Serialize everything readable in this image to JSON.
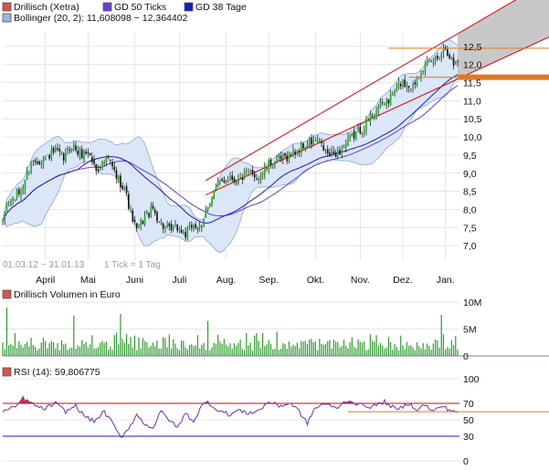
{
  "legend": {
    "price": "Drillisch (Xetra)",
    "ma50": "GD 50 Ticks",
    "ma38": "GD 38 Tage",
    "bollinger": "Bollinger (20, 2): 11,608098 − 12,364402",
    "volume": "Drillisch Volumen in Euro",
    "rsi": "RSI (14): 59,806775"
  },
  "footer": {
    "range": "01.03.12 − 31.01.13",
    "tick": "1 Tick = 1 Tag"
  },
  "colors": {
    "candle_up": "#22aa22",
    "candle_down": "#111111",
    "ma50": "#6a3fd0",
    "ma38": "#1c1cb8",
    "bollinger_line": "#8aa8d8",
    "bollinger_fill": "#dbe6f6",
    "trend_channel": "#dd0000",
    "channel_fill": "#c8c8c8",
    "volume_bar": "#2e9b2e",
    "rsi_line": "#6633aa",
    "rsi_fill": "#e03030",
    "ref_line": "#e07820",
    "grid": "#dcdcdc",
    "legend_price": "#d9534f",
    "legend_ma50": "#6a3fd0",
    "legend_ma38": "#1c1cb8",
    "legend_boll": "#9bb4de"
  },
  "chart_data": [
    {
      "name": "price-panel",
      "type": "candlestick",
      "title": "Drillisch (Xetra)",
      "x_tick_labels": [
        "April",
        "Mai",
        "Juni",
        "Juli",
        "Aug.",
        "Sep.",
        "Okt.",
        "Nov.",
        "Dez.",
        "Jan."
      ],
      "y_tick_labels": [
        "7,0",
        "7,5",
        "8,0",
        "8,5",
        "9,0",
        "9,5",
        "10,0",
        "10,5",
        "11,0",
        "11,5",
        "12,0",
        "12,5"
      ],
      "ylim": [
        6.6,
        12.9
      ],
      "close_waypoints": [
        {
          "t": 0,
          "v": 7.6
        },
        {
          "t": 2,
          "v": 8.1
        },
        {
          "t": 5,
          "v": 8.3
        },
        {
          "t": 9,
          "v": 8.5
        },
        {
          "t": 14,
          "v": 9.3
        },
        {
          "t": 20,
          "v": 9.4
        },
        {
          "t": 26,
          "v": 9.6
        },
        {
          "t": 30,
          "v": 9.4
        },
        {
          "t": 34,
          "v": 9.8
        },
        {
          "t": 38,
          "v": 9.5
        },
        {
          "t": 42,
          "v": 9.6
        },
        {
          "t": 46,
          "v": 9.1
        },
        {
          "t": 52,
          "v": 9.4
        },
        {
          "t": 56,
          "v": 8.9
        },
        {
          "t": 60,
          "v": 8.6
        },
        {
          "t": 63,
          "v": 7.9
        },
        {
          "t": 66,
          "v": 7.4
        },
        {
          "t": 70,
          "v": 7.8
        },
        {
          "t": 74,
          "v": 8.0
        },
        {
          "t": 78,
          "v": 7.6
        },
        {
          "t": 82,
          "v": 7.4
        },
        {
          "t": 86,
          "v": 7.5
        },
        {
          "t": 90,
          "v": 7.3
        },
        {
          "t": 94,
          "v": 7.6
        },
        {
          "t": 98,
          "v": 7.4
        },
        {
          "t": 100,
          "v": 8.0
        },
        {
          "t": 104,
          "v": 8.5
        },
        {
          "t": 108,
          "v": 8.8
        },
        {
          "t": 112,
          "v": 8.9
        },
        {
          "t": 116,
          "v": 8.8
        },
        {
          "t": 120,
          "v": 9.0
        },
        {
          "t": 126,
          "v": 8.9
        },
        {
          "t": 132,
          "v": 9.3
        },
        {
          "t": 138,
          "v": 9.4
        },
        {
          "t": 144,
          "v": 9.6
        },
        {
          "t": 150,
          "v": 9.8
        },
        {
          "t": 155,
          "v": 9.9
        },
        {
          "t": 160,
          "v": 9.5
        },
        {
          "t": 166,
          "v": 9.6
        },
        {
          "t": 172,
          "v": 10.0
        },
        {
          "t": 178,
          "v": 10.3
        },
        {
          "t": 184,
          "v": 10.8
        },
        {
          "t": 190,
          "v": 11.0
        },
        {
          "t": 196,
          "v": 11.5
        },
        {
          "t": 202,
          "v": 11.4
        },
        {
          "t": 206,
          "v": 11.9
        },
        {
          "t": 210,
          "v": 12.0
        },
        {
          "t": 214,
          "v": 12.2
        },
        {
          "t": 218,
          "v": 12.5
        },
        {
          "t": 222,
          "v": 12.0
        },
        {
          "t": 224,
          "v": 12.1
        }
      ],
      "reference_levels": [
        12.45,
        11.65
      ]
    },
    {
      "name": "volume-panel",
      "type": "bar",
      "title": "Drillisch Volumen in Euro",
      "y_tick_labels": [
        "0",
        "5M",
        "10M"
      ],
      "ylim": [
        0,
        10
      ],
      "typical_range": [
        1,
        4.5
      ],
      "peaks": [
        {
          "t": 2,
          "v": 9.0
        },
        {
          "t": 35,
          "v": 7.5
        },
        {
          "t": 58,
          "v": 7.8
        },
        {
          "t": 101,
          "v": 6.5
        },
        {
          "t": 135,
          "v": 4.5
        },
        {
          "t": 216,
          "v": 7.6
        }
      ]
    },
    {
      "name": "rsi-panel",
      "type": "line",
      "title": "RSI (14): 59,806775",
      "y_tick_labels": [
        "0",
        "30",
        "50",
        "70",
        "100"
      ],
      "ylim": [
        0,
        100
      ],
      "levels": [
        30,
        70
      ],
      "last_value": 59.806775,
      "waypoints": [
        {
          "t": 0,
          "v": 60
        },
        {
          "t": 6,
          "v": 65
        },
        {
          "t": 10,
          "v": 76
        },
        {
          "t": 14,
          "v": 70
        },
        {
          "t": 20,
          "v": 63
        },
        {
          "t": 26,
          "v": 70
        },
        {
          "t": 31,
          "v": 60
        },
        {
          "t": 36,
          "v": 67
        },
        {
          "t": 40,
          "v": 55
        },
        {
          "t": 45,
          "v": 48
        },
        {
          "t": 50,
          "v": 60
        },
        {
          "t": 55,
          "v": 42
        },
        {
          "t": 58,
          "v": 28
        },
        {
          "t": 62,
          "v": 40
        },
        {
          "t": 66,
          "v": 56
        },
        {
          "t": 70,
          "v": 45
        },
        {
          "t": 74,
          "v": 40
        },
        {
          "t": 78,
          "v": 60
        },
        {
          "t": 82,
          "v": 50
        },
        {
          "t": 86,
          "v": 40
        },
        {
          "t": 90,
          "v": 58
        },
        {
          "t": 94,
          "v": 48
        },
        {
          "t": 98,
          "v": 67
        },
        {
          "t": 101,
          "v": 72
        },
        {
          "t": 104,
          "v": 65
        },
        {
          "t": 108,
          "v": 60
        },
        {
          "t": 112,
          "v": 56
        },
        {
          "t": 116,
          "v": 62
        },
        {
          "t": 120,
          "v": 58
        },
        {
          "t": 126,
          "v": 61
        },
        {
          "t": 131,
          "v": 72
        },
        {
          "t": 136,
          "v": 67
        },
        {
          "t": 142,
          "v": 70
        },
        {
          "t": 146,
          "v": 60
        },
        {
          "t": 150,
          "v": 45
        },
        {
          "t": 153,
          "v": 62
        },
        {
          "t": 158,
          "v": 70
        },
        {
          "t": 164,
          "v": 64
        },
        {
          "t": 170,
          "v": 74
        },
        {
          "t": 176,
          "v": 68
        },
        {
          "t": 182,
          "v": 66
        },
        {
          "t": 188,
          "v": 72
        },
        {
          "t": 194,
          "v": 62
        },
        {
          "t": 200,
          "v": 70
        },
        {
          "t": 204,
          "v": 63
        },
        {
          "t": 208,
          "v": 68
        },
        {
          "t": 212,
          "v": 60
        },
        {
          "t": 216,
          "v": 67
        },
        {
          "t": 220,
          "v": 62
        },
        {
          "t": 224,
          "v": 60
        }
      ]
    }
  ]
}
